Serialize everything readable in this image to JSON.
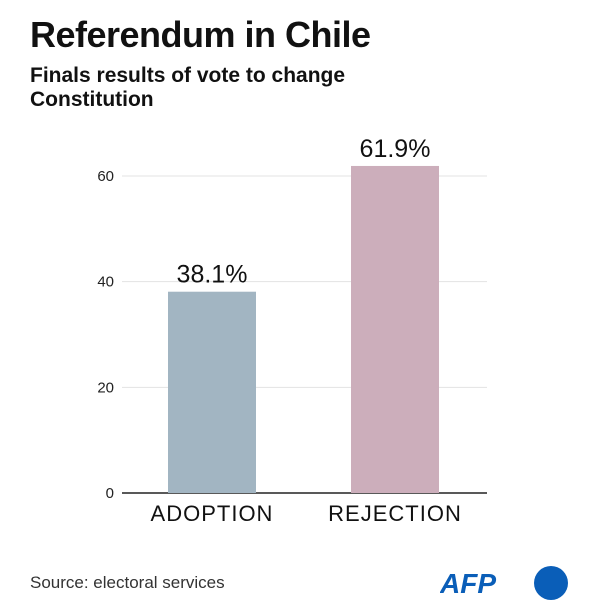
{
  "header": {
    "title": "Referendum in Chile",
    "subtitle": "Finals results of vote to change Constitution"
  },
  "footer": {
    "source": "Source: electoral services",
    "logo_text": "AFP"
  },
  "colors": {
    "adoption": "#a2b5c2",
    "rejection": "#ccaebb",
    "grid": "#e3e3e3",
    "axis": "#222222",
    "logo": "#0a5eb8"
  },
  "chart_data": {
    "type": "bar",
    "title": "Referendum in Chile",
    "subtitle": "Finals results of vote to change Constitution",
    "categories": [
      "ADOPTION",
      "REJECTION"
    ],
    "values": [
      38.1,
      61.9
    ],
    "value_labels": [
      "38.1%",
      "61.9%"
    ],
    "bar_colors": [
      "#a2b5c2",
      "#ccaebb"
    ],
    "ylim": [
      0,
      60
    ],
    "yticks": [
      0,
      20,
      40,
      60
    ],
    "xlabel": "",
    "ylabel": "",
    "grid": true,
    "legend": "none"
  }
}
